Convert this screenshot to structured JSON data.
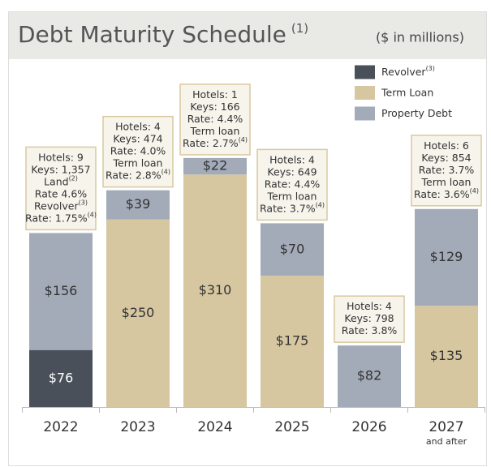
{
  "chart_data": {
    "type": "stacked-bar",
    "title": "Debt Maturity Schedule",
    "title_sup": "(1)",
    "subtitle": "($ in millions)",
    "categories": [
      "2022",
      "2023",
      "2024",
      "2025",
      "2026",
      "2027"
    ],
    "category_notes": [
      null,
      null,
      null,
      null,
      null,
      "and after"
    ],
    "series": [
      {
        "name": "Revolver",
        "name_sup": "(3)",
        "color": "#4a505a",
        "label_color": "#ffffff",
        "values": [
          76,
          null,
          null,
          null,
          null,
          null
        ],
        "value_labels": [
          "$76",
          null,
          null,
          null,
          null,
          null
        ]
      },
      {
        "name": "Term Loan",
        "color": "#d6c7a1",
        "label_color": "#333333",
        "values": [
          null,
          250,
          310,
          175,
          null,
          135
        ],
        "value_labels": [
          null,
          "$250",
          "$310",
          "$175",
          null,
          "$135"
        ]
      },
      {
        "name": "Property Debt",
        "color": "#a3abb9",
        "label_color": "#333333",
        "values": [
          156,
          39,
          22,
          70,
          82,
          129
        ],
        "value_labels": [
          "$156",
          "$39",
          "$22",
          "$70",
          "$82",
          "$129"
        ]
      }
    ],
    "annotations": [
      [
        {
          "text": "Hotels: 9"
        },
        {
          "text": "Keys: 1,357"
        },
        {
          "text": "Land",
          "sup": "(2)"
        },
        {
          "text": "Rate 4.6%"
        },
        {
          "text": "Revolver",
          "sup": "(3)"
        },
        {
          "text": "Rate: 1.75%",
          "sup": "(4)"
        }
      ],
      [
        {
          "text": "Hotels: 4"
        },
        {
          "text": "Keys: 474"
        },
        {
          "text": "Rate: 4.0%"
        },
        {
          "text": "Term loan"
        },
        {
          "text": "Rate: 2.8%",
          "sup": "(4)"
        }
      ],
      [
        {
          "text": "Hotels: 1"
        },
        {
          "text": "Keys: 166"
        },
        {
          "text": "Rate: 4.4%"
        },
        {
          "text": "Term loan"
        },
        {
          "text": "Rate: 2.7%",
          "sup": "(4)"
        }
      ],
      [
        {
          "text": "Hotels: 4"
        },
        {
          "text": "Keys: 649"
        },
        {
          "text": "Rate: 4.4%"
        },
        {
          "text": "Term loan"
        },
        {
          "text": "Rate: 3.7%",
          "sup": "(4)"
        }
      ],
      [
        {
          "text": "Hotels: 4"
        },
        {
          "text": "Keys: 798"
        },
        {
          "text": "Rate: 3.8%"
        }
      ],
      [
        {
          "text": "Hotels: 6"
        },
        {
          "text": "Keys: 854"
        },
        {
          "text": "Rate: 3.7%"
        },
        {
          "text": "Term loan"
        },
        {
          "text": "Rate: 3.6%",
          "sup": "(4)"
        }
      ]
    ]
  }
}
